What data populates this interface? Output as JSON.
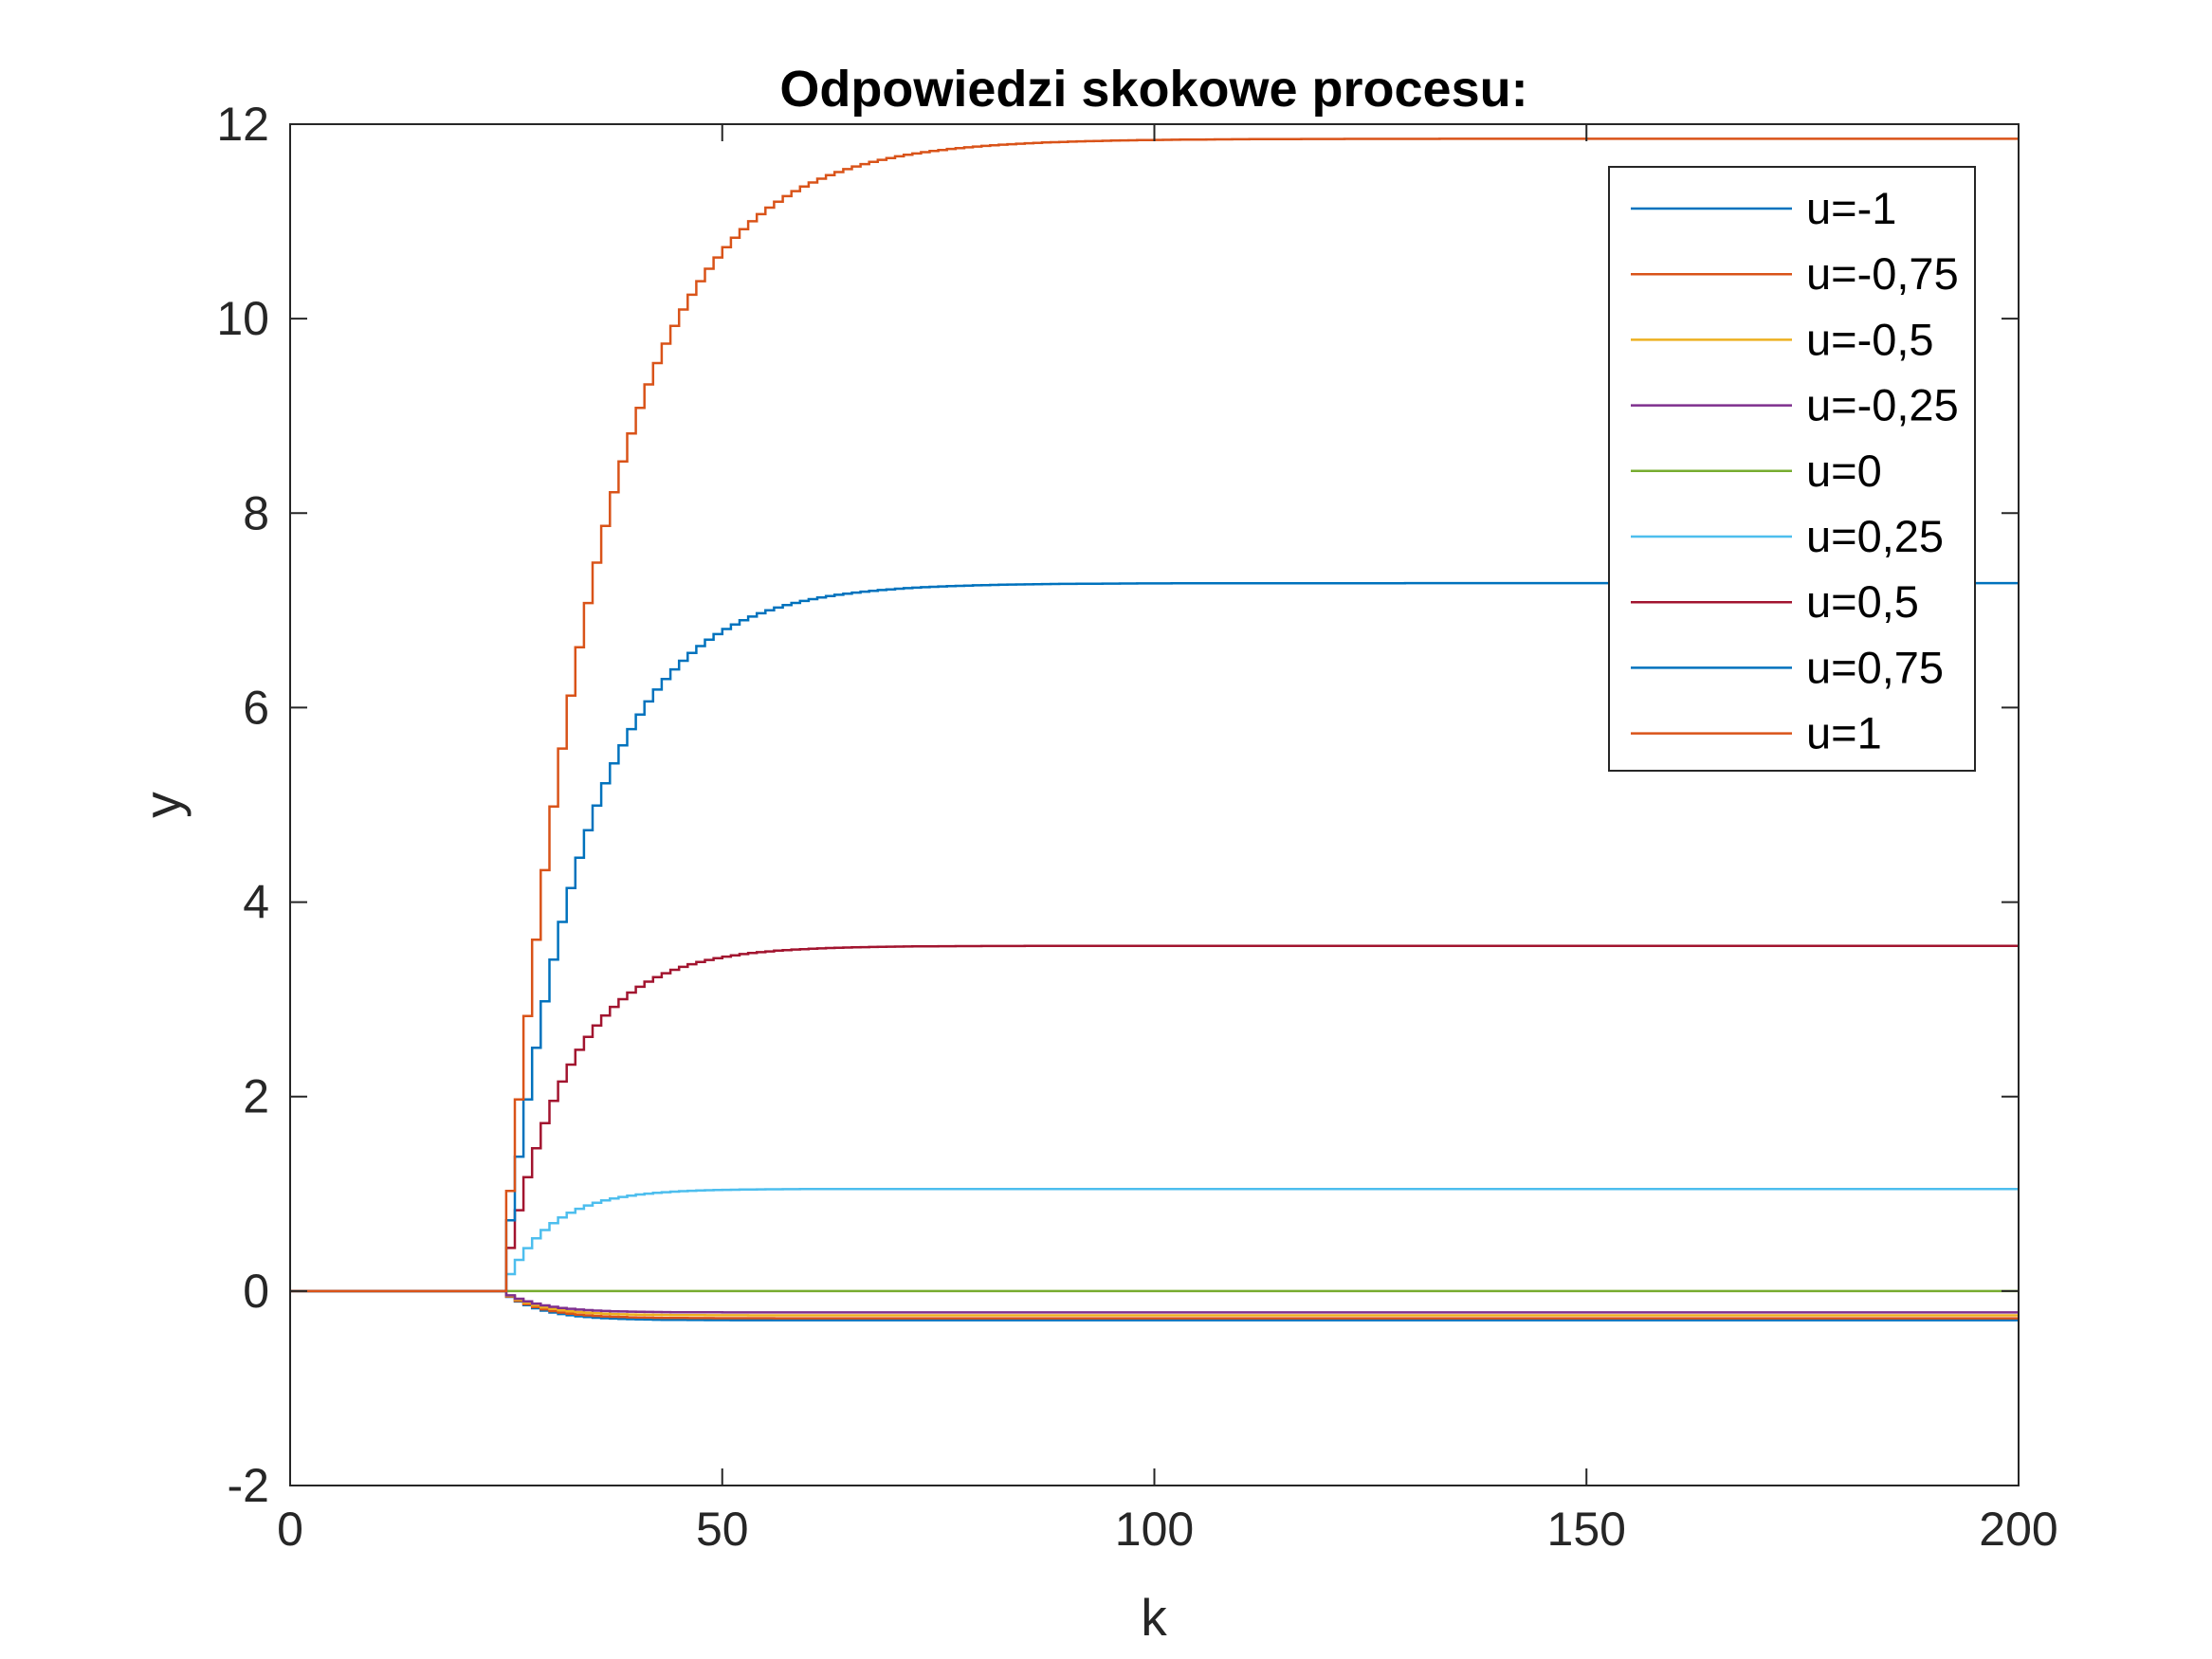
{
  "chart_data": {
    "type": "line",
    "title": "Odpowiedzi skokowe procesu:",
    "xlabel": "k",
    "ylabel": "y",
    "xlim": [
      0,
      200
    ],
    "ylim": [
      -2,
      12
    ],
    "xticks": [
      0,
      50,
      100,
      150,
      200
    ],
    "yticks": [
      -2,
      0,
      2,
      4,
      6,
      8,
      10,
      12
    ],
    "xtick_labels": [
      "0",
      "50",
      "100",
      "150",
      "200"
    ],
    "ytick_labels": [
      "-2",
      "0",
      "2",
      "4",
      "6",
      "8",
      "10",
      "12"
    ],
    "legend_position": "top-right",
    "grid": false,
    "step_start_k": 25,
    "series": [
      {
        "name": "u=-1",
        "color": "#0072BD",
        "final": -0.3,
        "tau": 4.5
      },
      {
        "name": "u=-0,75",
        "color": "#D95319",
        "final": -0.28,
        "tau": 4.5
      },
      {
        "name": "u=-0,5",
        "color": "#EDB120",
        "final": -0.25,
        "tau": 4.5
      },
      {
        "name": "u=-0,25",
        "color": "#7E2F8E",
        "final": -0.22,
        "tau": 4.5
      },
      {
        "name": "u=0",
        "color": "#77AC30",
        "final": 0.0,
        "tau": 5
      },
      {
        "name": "u=0,25",
        "color": "#4DBEEE",
        "final": 1.05,
        "tau": 5.5
      },
      {
        "name": "u=0,5",
        "color": "#A2142F",
        "final": 3.55,
        "tau": 7.5
      },
      {
        "name": "u=0,75",
        "color": "#0072BD",
        "final": 7.28,
        "tau": 9.5
      },
      {
        "name": "u=1",
        "color": "#D95319",
        "final": 11.85,
        "tau": 11
      }
    ]
  }
}
